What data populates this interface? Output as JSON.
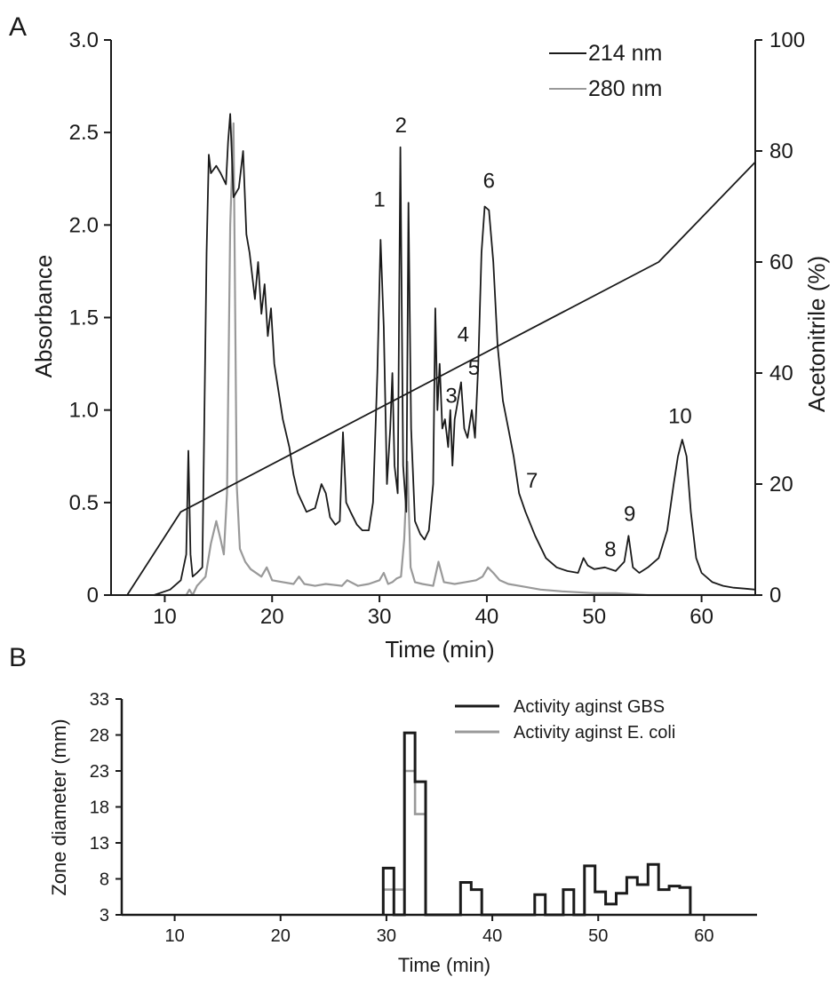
{
  "panel_a_label": "A",
  "panel_b_label": "B",
  "chart_data": [
    {
      "type": "line",
      "panel": "A",
      "xlabel": "Time (min)",
      "ylabel": "Absorbance",
      "y2label": "Acetonitrile (%)",
      "xlim": [
        5,
        65
      ],
      "ylim": [
        0,
        3.0
      ],
      "y2lim": [
        0,
        100
      ],
      "x_ticks": [
        "10",
        "20",
        "30",
        "40",
        "50",
        "60"
      ],
      "y_ticks": [
        "0",
        "0.5",
        "1.0",
        "1.5",
        "2.0",
        "2.5",
        "3.0"
      ],
      "y2_ticks": [
        "0",
        "20",
        "40",
        "60",
        "80",
        "100"
      ],
      "legend_position": "top-right",
      "colors": {
        "nm214": "#1a1a1a",
        "nm280": "#999999",
        "gradient": "#1a1a1a"
      },
      "series": [
        {
          "name": "214 nm",
          "axis": "left",
          "x": [
            9,
            10.5,
            11.5,
            12.0,
            12.2,
            12.4,
            12.6,
            13.0,
            13.5,
            13.9,
            14.1,
            14.3,
            14.8,
            15.2,
            15.7,
            15.9,
            16.1,
            16.4,
            16.9,
            17.3,
            17.6,
            17.9,
            18.4,
            18.7,
            19.0,
            19.3,
            19.6,
            19.9,
            20.2,
            20.6,
            21.0,
            21.6,
            22.0,
            22.4,
            22.8,
            23.2,
            24.0,
            24.6,
            25.0,
            25.4,
            25.9,
            26.3,
            26.6,
            26.9,
            27.3,
            27.9,
            28.4,
            29.0,
            29.4,
            29.8,
            30.1,
            30.4,
            30.7,
            31.0,
            31.2,
            31.4,
            31.7,
            31.95,
            32.2,
            32.5,
            32.7,
            32.95,
            33.3,
            33.8,
            34.2,
            34.6,
            35.0,
            35.2,
            35.4,
            35.6,
            35.85,
            36.1,
            36.4,
            36.6,
            36.8,
            37.0,
            37.3,
            37.6,
            37.9,
            38.2,
            38.6,
            38.9,
            39.2,
            39.5,
            39.8,
            40.2,
            40.6,
            41.0,
            41.5,
            42.0,
            42.5,
            43.0,
            43.6,
            44.5,
            45.5,
            46.5,
            47.5,
            48.5,
            49.0,
            49.4,
            50.0,
            51.0,
            52.0,
            52.8,
            53.2,
            53.6,
            54.2,
            55.0,
            56.0,
            56.8,
            57.4,
            57.8,
            58.2,
            58.6,
            59.0,
            59.5,
            60.0,
            61.0,
            62.0,
            63.0,
            64.0,
            65.0
          ],
          "y": [
            0.0,
            0.03,
            0.08,
            0.22,
            0.78,
            0.22,
            0.1,
            0.12,
            0.15,
            1.85,
            2.38,
            2.28,
            2.32,
            2.28,
            2.22,
            2.45,
            2.6,
            2.15,
            2.2,
            2.4,
            1.95,
            1.85,
            1.6,
            1.8,
            1.52,
            1.68,
            1.4,
            1.55,
            1.25,
            1.1,
            0.95,
            0.8,
            0.65,
            0.55,
            0.5,
            0.45,
            0.47,
            0.6,
            0.55,
            0.42,
            0.38,
            0.4,
            0.88,
            0.5,
            0.45,
            0.38,
            0.35,
            0.35,
            0.5,
            1.2,
            1.92,
            1.45,
            0.6,
            0.9,
            1.2,
            0.7,
            0.55,
            2.42,
            0.7,
            0.45,
            2.12,
            0.9,
            0.4,
            0.33,
            0.3,
            0.35,
            0.6,
            1.55,
            1.0,
            1.25,
            0.9,
            0.95,
            0.8,
            1.0,
            0.7,
            0.95,
            1.05,
            1.15,
            0.9,
            0.85,
            1.0,
            0.85,
            1.25,
            1.85,
            2.1,
            2.08,
            1.8,
            1.35,
            1.05,
            0.9,
            0.75,
            0.55,
            0.45,
            0.32,
            0.2,
            0.15,
            0.13,
            0.12,
            0.2,
            0.16,
            0.14,
            0.15,
            0.13,
            0.18,
            0.32,
            0.15,
            0.12,
            0.15,
            0.2,
            0.35,
            0.6,
            0.75,
            0.84,
            0.75,
            0.45,
            0.2,
            0.12,
            0.07,
            0.05,
            0.04,
            0.035,
            0.03
          ]
        },
        {
          "name": "280 nm",
          "axis": "left",
          "x": [
            9,
            10,
            11,
            12.0,
            12.3,
            12.6,
            13,
            13.8,
            14.3,
            14.8,
            15.2,
            15.5,
            15.8,
            16.1,
            16.4,
            16.7,
            17.0,
            17.5,
            18.0,
            19.0,
            19.5,
            20.0,
            21,
            22.0,
            22.5,
            23,
            24,
            25,
            26.5,
            27,
            28,
            29,
            30,
            30.4,
            30.8,
            31.2,
            31.6,
            32.0,
            32.3,
            32.6,
            32.9,
            33.3,
            34,
            35,
            35.5,
            36,
            37,
            38,
            39,
            39.6,
            40.1,
            40.6,
            41.2,
            42,
            43,
            44,
            45,
            47,
            50,
            52,
            55,
            58,
            60,
            62,
            65
          ],
          "y": [
            0.0,
            0.0,
            0.0,
            0.0,
            0.03,
            0.0,
            0.05,
            0.1,
            0.28,
            0.4,
            0.3,
            0.22,
            0.55,
            2.0,
            2.55,
            0.6,
            0.25,
            0.18,
            0.14,
            0.1,
            0.15,
            0.08,
            0.07,
            0.06,
            0.1,
            0.06,
            0.05,
            0.06,
            0.05,
            0.08,
            0.05,
            0.06,
            0.08,
            0.12,
            0.06,
            0.07,
            0.09,
            0.1,
            0.3,
            0.72,
            0.15,
            0.07,
            0.06,
            0.05,
            0.18,
            0.07,
            0.06,
            0.07,
            0.08,
            0.1,
            0.15,
            0.12,
            0.08,
            0.06,
            0.05,
            0.04,
            0.03,
            0.02,
            0.01,
            0.01,
            0.0,
            0.0,
            0.0,
            0.0,
            0.0
          ]
        },
        {
          "name": "",
          "axis": "right",
          "x": [
            6.5,
            11.5,
            56,
            65
          ],
          "y": [
            0,
            15,
            60,
            78
          ]
        }
      ],
      "peak_labels": [
        {
          "text": "1",
          "x": 30.0,
          "y": 2.1
        },
        {
          "text": "2",
          "x": 32.0,
          "y": 2.5
        },
        {
          "text": "3",
          "x": 36.7,
          "y": 1.04
        },
        {
          "text": "4",
          "x": 37.8,
          "y": 1.37
        },
        {
          "text": "5",
          "x": 38.8,
          "y": 1.19
        },
        {
          "text": "6",
          "x": 40.2,
          "y": 2.2
        },
        {
          "text": "7",
          "x": 44.2,
          "y": 0.58
        },
        {
          "text": "8",
          "x": 51.5,
          "y": 0.21
        },
        {
          "text": "9",
          "x": 53.3,
          "y": 0.4
        },
        {
          "text": "10",
          "x": 58.0,
          "y": 0.93
        }
      ]
    },
    {
      "type": "line",
      "panel": "B",
      "xlabel": "Time (min)",
      "ylabel": "Zone diameter (mm)",
      "xlim": [
        5,
        65
      ],
      "ylim": [
        3,
        33
      ],
      "x_ticks": [
        "10",
        "20",
        "30",
        "40",
        "50",
        "60"
      ],
      "y_ticks": [
        "3",
        "8",
        "13",
        "18",
        "23",
        "28",
        "33"
      ],
      "legend_position": "top-right",
      "colors": {
        "gbs": "#1a1a1a",
        "ecoli": "#999999"
      },
      "series": [
        {
          "name": "Activity aginst GBS",
          "x": [
            29.7,
            29.7,
            30.7,
            30.7,
            31.7,
            31.7,
            32.7,
            32.7,
            33.7,
            33.7,
            37.0,
            37.0,
            38.0,
            38.0,
            39.0,
            39.0,
            44.0,
            44.0,
            45.0,
            45.0,
            46.7,
            46.7,
            47.7,
            47.7,
            48.7,
            48.7,
            49.7,
            49.7,
            50.7,
            50.7,
            51.7,
            51.7,
            52.7,
            52.7,
            53.7,
            53.7,
            54.7,
            54.7,
            55.7,
            55.7,
            56.7,
            56.7,
            57.7,
            57.7,
            58.7,
            58.7
          ],
          "y": [
            3,
            9.5,
            9.5,
            3,
            3,
            28.3,
            28.3,
            21.5,
            21.5,
            3,
            3,
            7.5,
            7.5,
            6.5,
            6.5,
            3,
            3,
            5.8,
            5.8,
            3,
            3,
            6.5,
            6.5,
            3,
            3,
            9.8,
            9.8,
            6.2,
            6.2,
            4.5,
            4.5,
            6.0,
            6.0,
            8.2,
            8.2,
            7.2,
            7.2,
            10.0,
            10.0,
            6.5,
            6.5,
            7.0,
            7.0,
            6.8,
            6.8,
            3
          ]
        },
        {
          "name": "Activity aginst E. coli",
          "x": [
            29.7,
            29.7,
            31.7,
            31.7,
            32.7,
            32.7,
            33.7,
            33.7
          ],
          "y": [
            3,
            6.5,
            6.5,
            23.0,
            23.0,
            17.0,
            17.0,
            3
          ]
        }
      ]
    }
  ]
}
